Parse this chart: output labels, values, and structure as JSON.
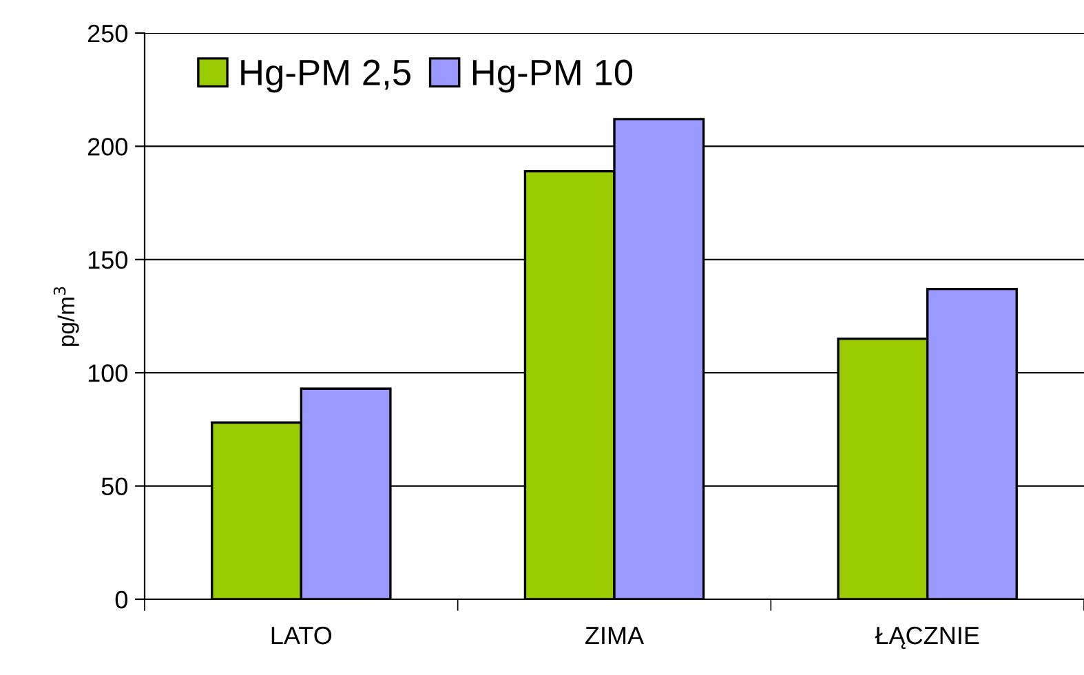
{
  "chart_data": {
    "type": "bar",
    "ylabel": "pg/m$^{3}$",
    "categories": [
      "LATO",
      "ZIMA",
      "ŁĄCZNIE"
    ],
    "series": [
      {
        "name": "Hg-PM 2,5",
        "color": "#99cc00",
        "values": [
          78,
          189,
          115
        ]
      },
      {
        "name": "Hg-PM 10",
        "color": "#9999ff",
        "values": [
          93,
          212,
          137
        ]
      }
    ],
    "ylim": [
      0,
      250
    ],
    "yticks": [
      0,
      50,
      100,
      150,
      200,
      250
    ],
    "grid": "y",
    "legend": "top left"
  }
}
